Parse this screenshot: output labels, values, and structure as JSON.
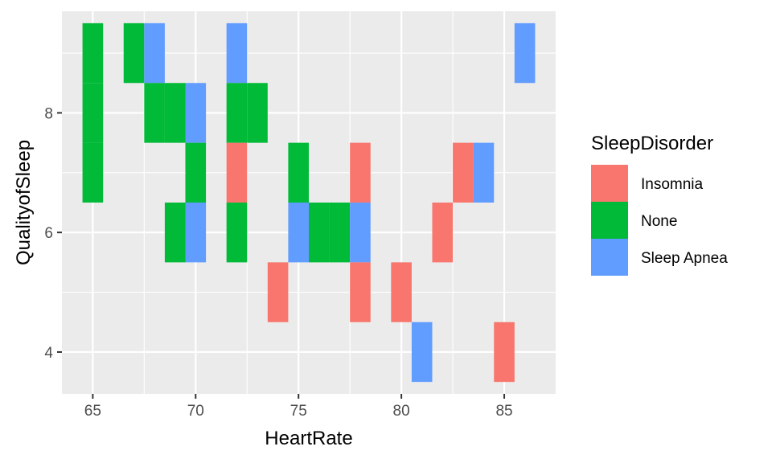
{
  "chart_data": {
    "type": "heatmap",
    "title": "",
    "xlabel": "HeartRate",
    "ylabel": "QualityofSleep",
    "xlim": [
      63.5,
      87.5
    ],
    "ylim": [
      3.3,
      9.7
    ],
    "xticks": [
      65,
      70,
      75,
      80,
      85
    ],
    "yticks": [
      4,
      6,
      8
    ],
    "grid": true,
    "legend": {
      "title": "SleepDisorder",
      "position": "right",
      "entries": [
        {
          "name": "Insomnia",
          "color": "#F8766D"
        },
        {
          "name": "None",
          "color": "#00BA38"
        },
        {
          "name": "Sleep Apnea",
          "color": "#619CFF"
        }
      ]
    },
    "cells": [
      {
        "x": 65,
        "y": 7,
        "disorder": "None"
      },
      {
        "x": 65,
        "y": 8,
        "disorder": "None"
      },
      {
        "x": 65,
        "y": 9,
        "disorder": "None"
      },
      {
        "x": 67,
        "y": 9,
        "disorder": "None"
      },
      {
        "x": 68,
        "y": 9,
        "disorder": "Sleep Apnea"
      },
      {
        "x": 68,
        "y": 8,
        "disorder": "None"
      },
      {
        "x": 69,
        "y": 8,
        "disorder": "None"
      },
      {
        "x": 70,
        "y": 8,
        "disorder": "Sleep Apnea"
      },
      {
        "x": 70,
        "y": 7,
        "disorder": "None"
      },
      {
        "x": 69,
        "y": 6,
        "disorder": "None"
      },
      {
        "x": 70,
        "y": 6,
        "disorder": "Sleep Apnea"
      },
      {
        "x": 72,
        "y": 9,
        "disorder": "Sleep Apnea"
      },
      {
        "x": 72,
        "y": 8,
        "disorder": "None"
      },
      {
        "x": 73,
        "y": 8,
        "disorder": "None"
      },
      {
        "x": 72,
        "y": 7,
        "disorder": "Insomnia"
      },
      {
        "x": 72,
        "y": 6,
        "disorder": "None"
      },
      {
        "x": 74,
        "y": 5,
        "disorder": "Insomnia"
      },
      {
        "x": 75,
        "y": 7,
        "disorder": "None"
      },
      {
        "x": 75,
        "y": 6,
        "disorder": "Sleep Apnea"
      },
      {
        "x": 76,
        "y": 6,
        "disorder": "None"
      },
      {
        "x": 77,
        "y": 6,
        "disorder": "None"
      },
      {
        "x": 78,
        "y": 6,
        "disorder": "Sleep Apnea"
      },
      {
        "x": 78,
        "y": 7,
        "disorder": "Insomnia"
      },
      {
        "x": 78,
        "y": 5,
        "disorder": "Insomnia"
      },
      {
        "x": 80,
        "y": 5,
        "disorder": "Insomnia"
      },
      {
        "x": 81,
        "y": 4,
        "disorder": "Sleep Apnea"
      },
      {
        "x": 82,
        "y": 6,
        "disorder": "Insomnia"
      },
      {
        "x": 83,
        "y": 7,
        "disorder": "Insomnia"
      },
      {
        "x": 84,
        "y": 7,
        "disorder": "Sleep Apnea"
      },
      {
        "x": 85,
        "y": 4,
        "disorder": "Insomnia"
      },
      {
        "x": 86,
        "y": 9,
        "disorder": "Sleep Apnea"
      }
    ]
  },
  "style": {
    "panel_background": "#EBEBEB",
    "grid_color": "#FFFFFF"
  }
}
